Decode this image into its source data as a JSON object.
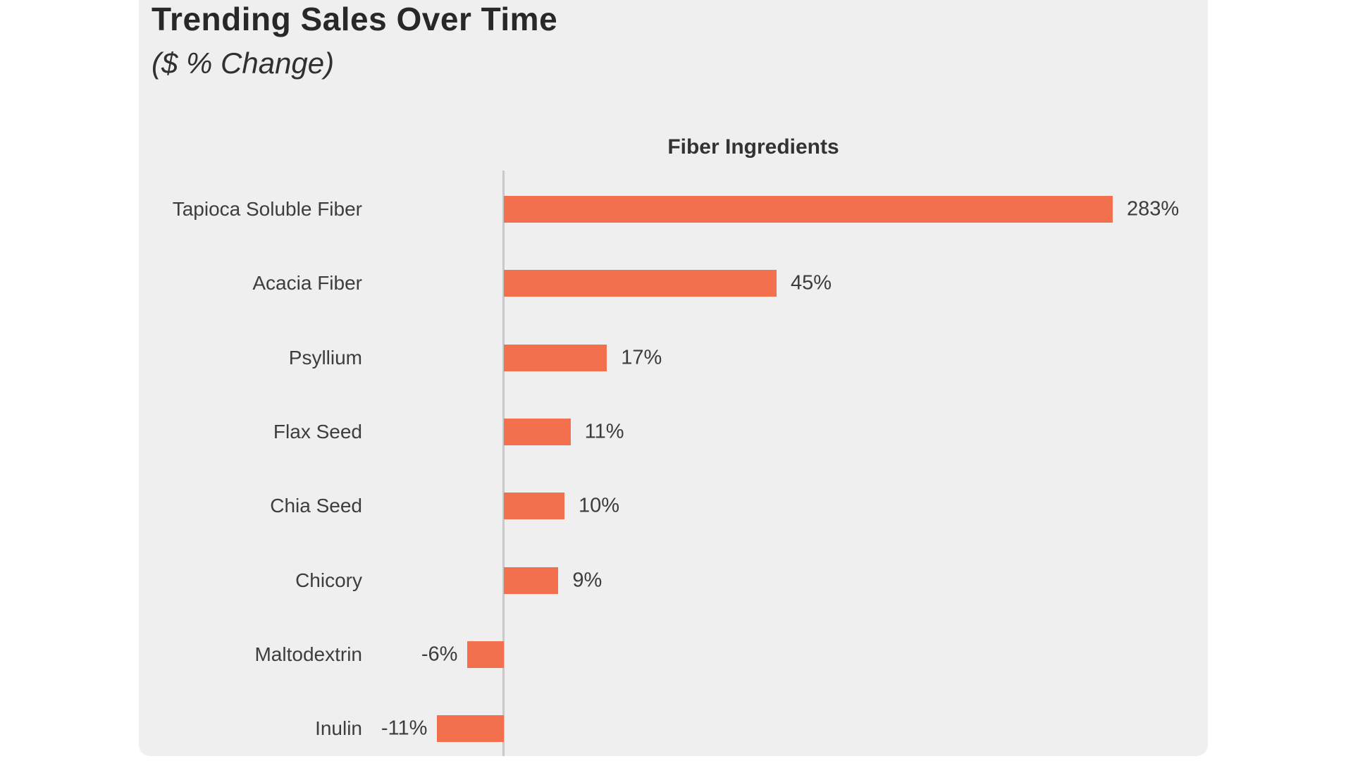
{
  "header": {
    "title": "Trending Sales Over Time",
    "subtitle": "($ % Change)"
  },
  "chart_data": {
    "type": "bar",
    "orientation": "horizontal",
    "title": "Trending Sales Over Time",
    "subtitle": "($ % Change)",
    "axis_title": "Fiber Ingredients",
    "categories": [
      "Tapioca Soluble Fiber",
      "Acacia Fiber",
      "Psyllium",
      "Flax Seed",
      "Chia Seed",
      "Chicory",
      "Maltodextrin",
      "Inulin"
    ],
    "values": [
      283,
      45,
      17,
      11,
      10,
      9,
      -6,
      -11
    ],
    "value_labels": [
      "283%",
      "45%",
      "17%",
      "11%",
      "10%",
      "9%",
      "-6%",
      "-11%"
    ],
    "legend": "none",
    "grid": "off",
    "layout_hints": {
      "note_top_bar_visually_capped": true
    },
    "colors": {
      "bar": "#f3704e",
      "panel_background": "#efefef",
      "page_background": "#ffffff",
      "axis_line": "#c9c9c9",
      "title_text": "#282828",
      "label_text": "#3d3d3d"
    }
  }
}
